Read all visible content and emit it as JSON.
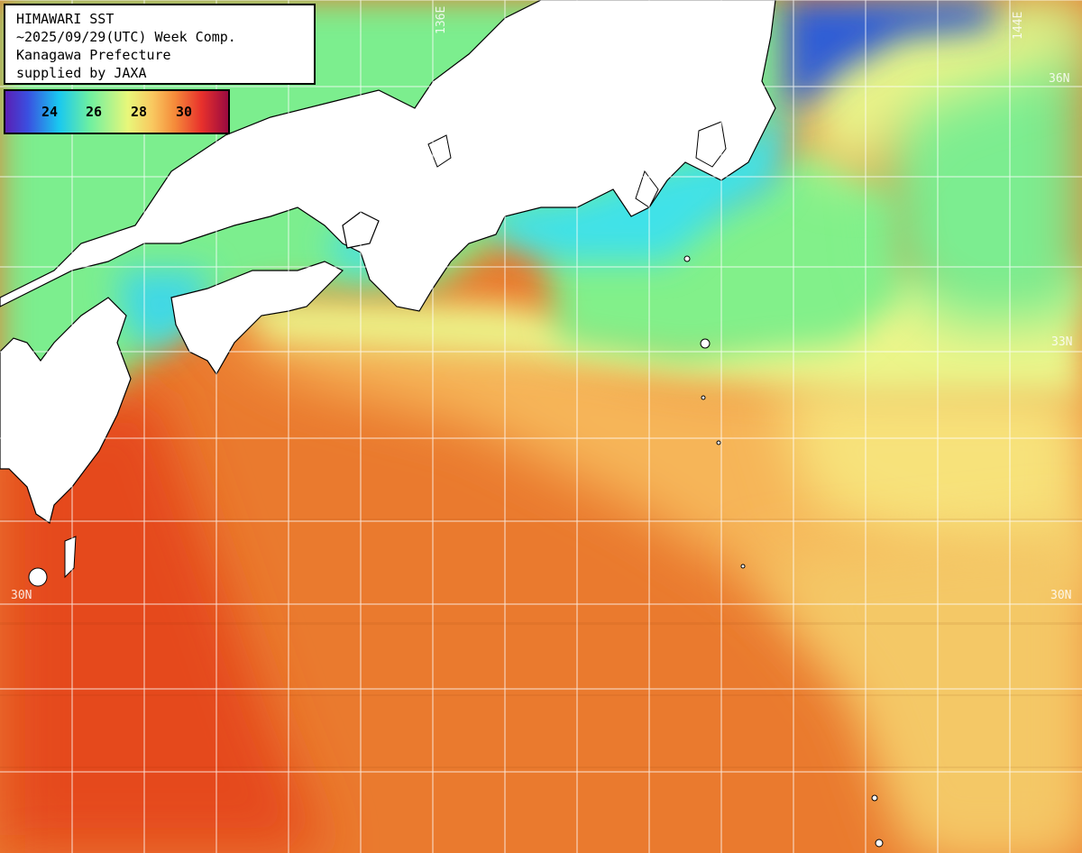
{
  "map": {
    "title_lines": [
      "HIMAWARI SST",
      "~2025/09/29(UTC) Week Comp.",
      "Kanagawa Prefecture",
      "supplied by JAXA"
    ]
  },
  "legend": {
    "ticks": [
      "24",
      "26",
      "28",
      "30"
    ]
  },
  "grid_labels": {
    "lat_36": "36N",
    "lat_33": "33N",
    "lat_30_left": "30N",
    "lat_30_right": "30N",
    "lon_136": "136E",
    "lon_144": "144E"
  },
  "colors": {
    "warm": "#e8742a",
    "hot": "#e64a1e",
    "yellow": "#eef58a",
    "green": "#7ef08c",
    "cyan": "#3fe0e6",
    "blue": "#2f5fd8",
    "land": "#ffffff",
    "grid": "#ffffff"
  }
}
